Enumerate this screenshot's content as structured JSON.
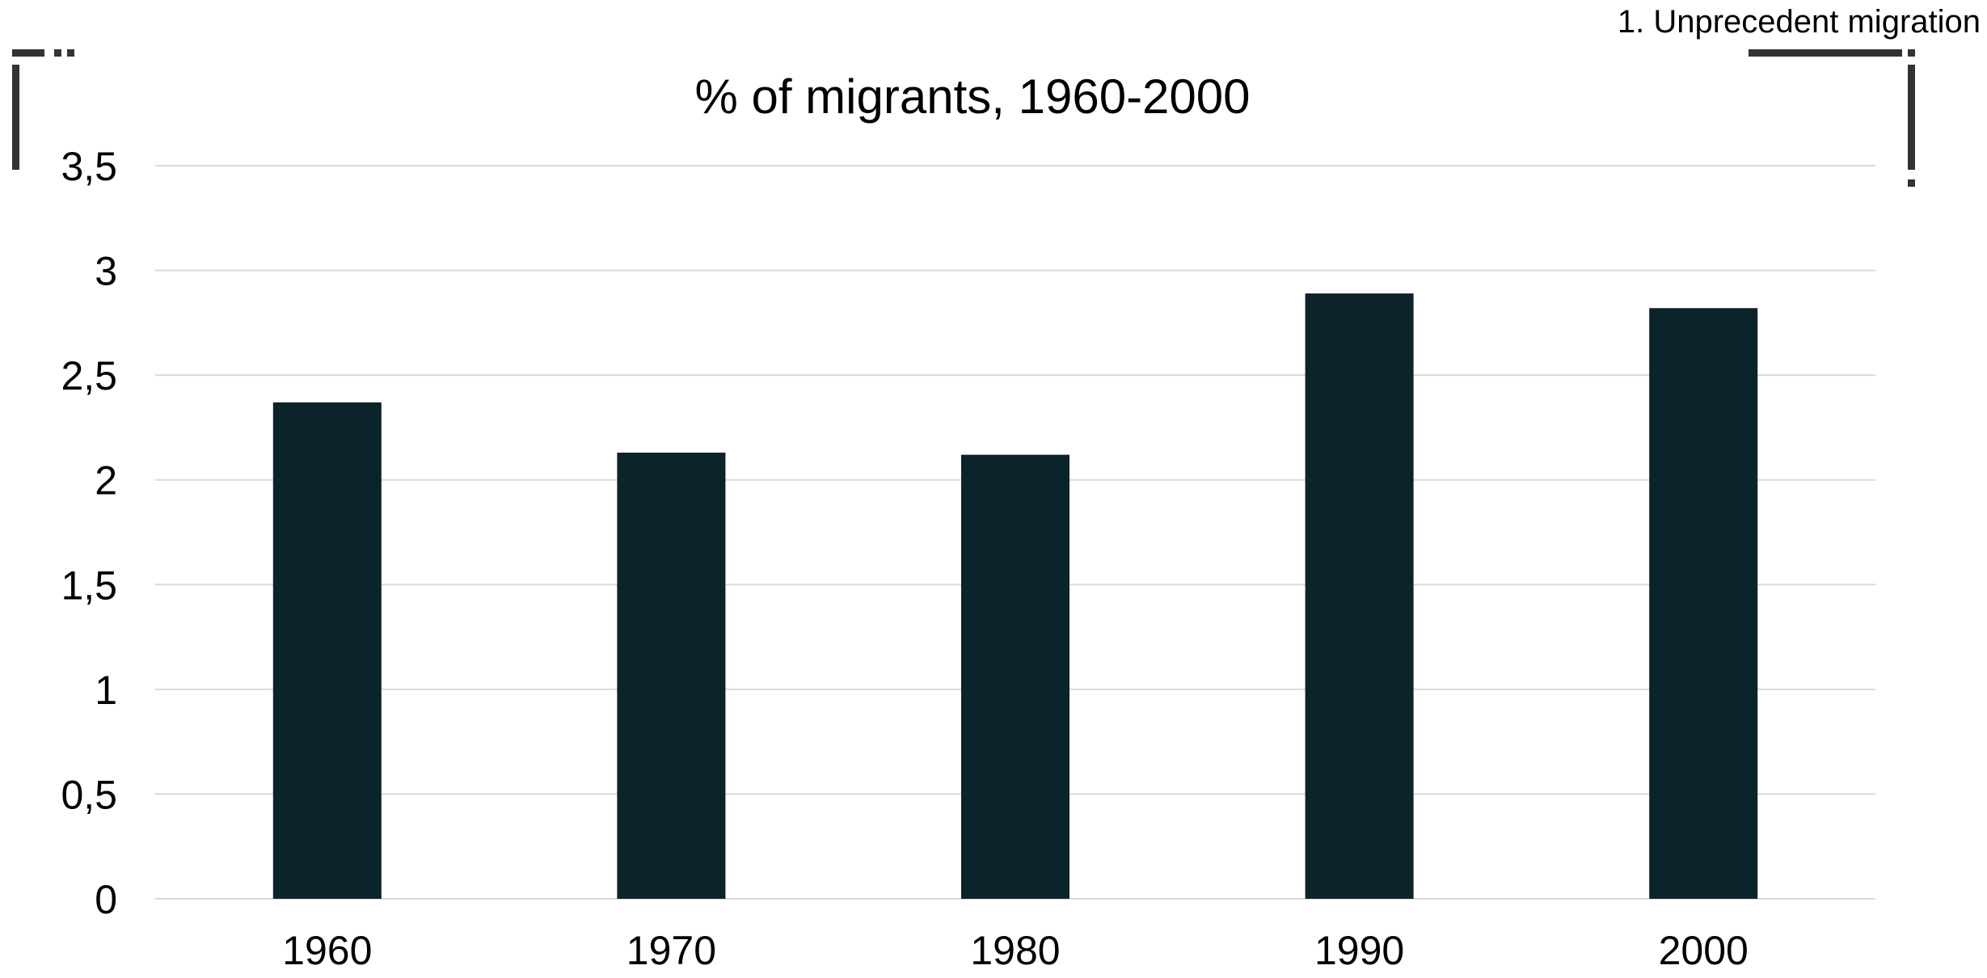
{
  "slide": {
    "section_label": "1. Unprecedent migration"
  },
  "colors": {
    "bar": "#0b232b",
    "gridline": "#d9d9d9",
    "text": "#000000",
    "bracket": "#333333",
    "background": "#ffffff"
  },
  "chart_data": {
    "type": "bar",
    "title": "% of migrants, 1960-2000",
    "xlabel": "",
    "ylabel": "",
    "categories": [
      "1960",
      "1970",
      "1980",
      "1990",
      "2000"
    ],
    "values": [
      2.37,
      2.13,
      2.12,
      2.89,
      2.82
    ],
    "ylim": [
      0,
      3.5
    ],
    "yticks": [
      0,
      0.5,
      1,
      1.5,
      2,
      2.5,
      3,
      3.5
    ],
    "ytick_labels": [
      "0",
      "0,5",
      "1",
      "1,5",
      "2",
      "2,5",
      "3",
      "3,5"
    ],
    "grid": true,
    "legend": "none"
  }
}
